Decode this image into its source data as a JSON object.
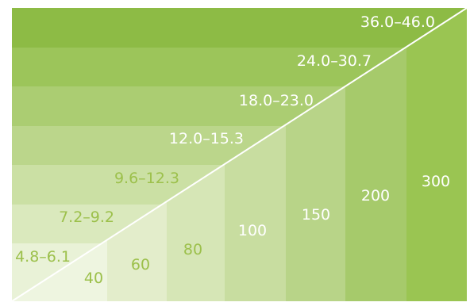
{
  "diagram": {
    "rows": [
      {
        "label": "36.0–46.0",
        "color": "#8dbb45"
      },
      {
        "label": "24.0–30.7",
        "color": "#9cc55a"
      },
      {
        "label": "18.0–23.0",
        "color": "#abcd72"
      },
      {
        "label": "12.0–15.3",
        "color": "#bbd68b"
      },
      {
        "label": "9.6–12.3",
        "color": "#cbe0a4"
      },
      {
        "label": "7.2–9.2",
        "color": "#dae9bd"
      },
      {
        "label": "4.8–6.1",
        "color": "#e9f2d7"
      }
    ],
    "columns": [
      {
        "label": "40",
        "color": "#eef5e0"
      },
      {
        "label": "60",
        "color": "#e3edcb"
      },
      {
        "label": "80",
        "color": "#d6e6b6"
      },
      {
        "label": "100",
        "color": "#c8dda0"
      },
      {
        "label": "150",
        "color": "#b8d488"
      },
      {
        "label": "200",
        "color": "#a6ca6b"
      },
      {
        "label": "300",
        "color": "#9ac552"
      }
    ],
    "colors": {
      "row_label": "#ffffff",
      "col_label_light": "#9cc04b",
      "col_label_dark": "#ffffff",
      "divider": "#ffffff"
    }
  }
}
